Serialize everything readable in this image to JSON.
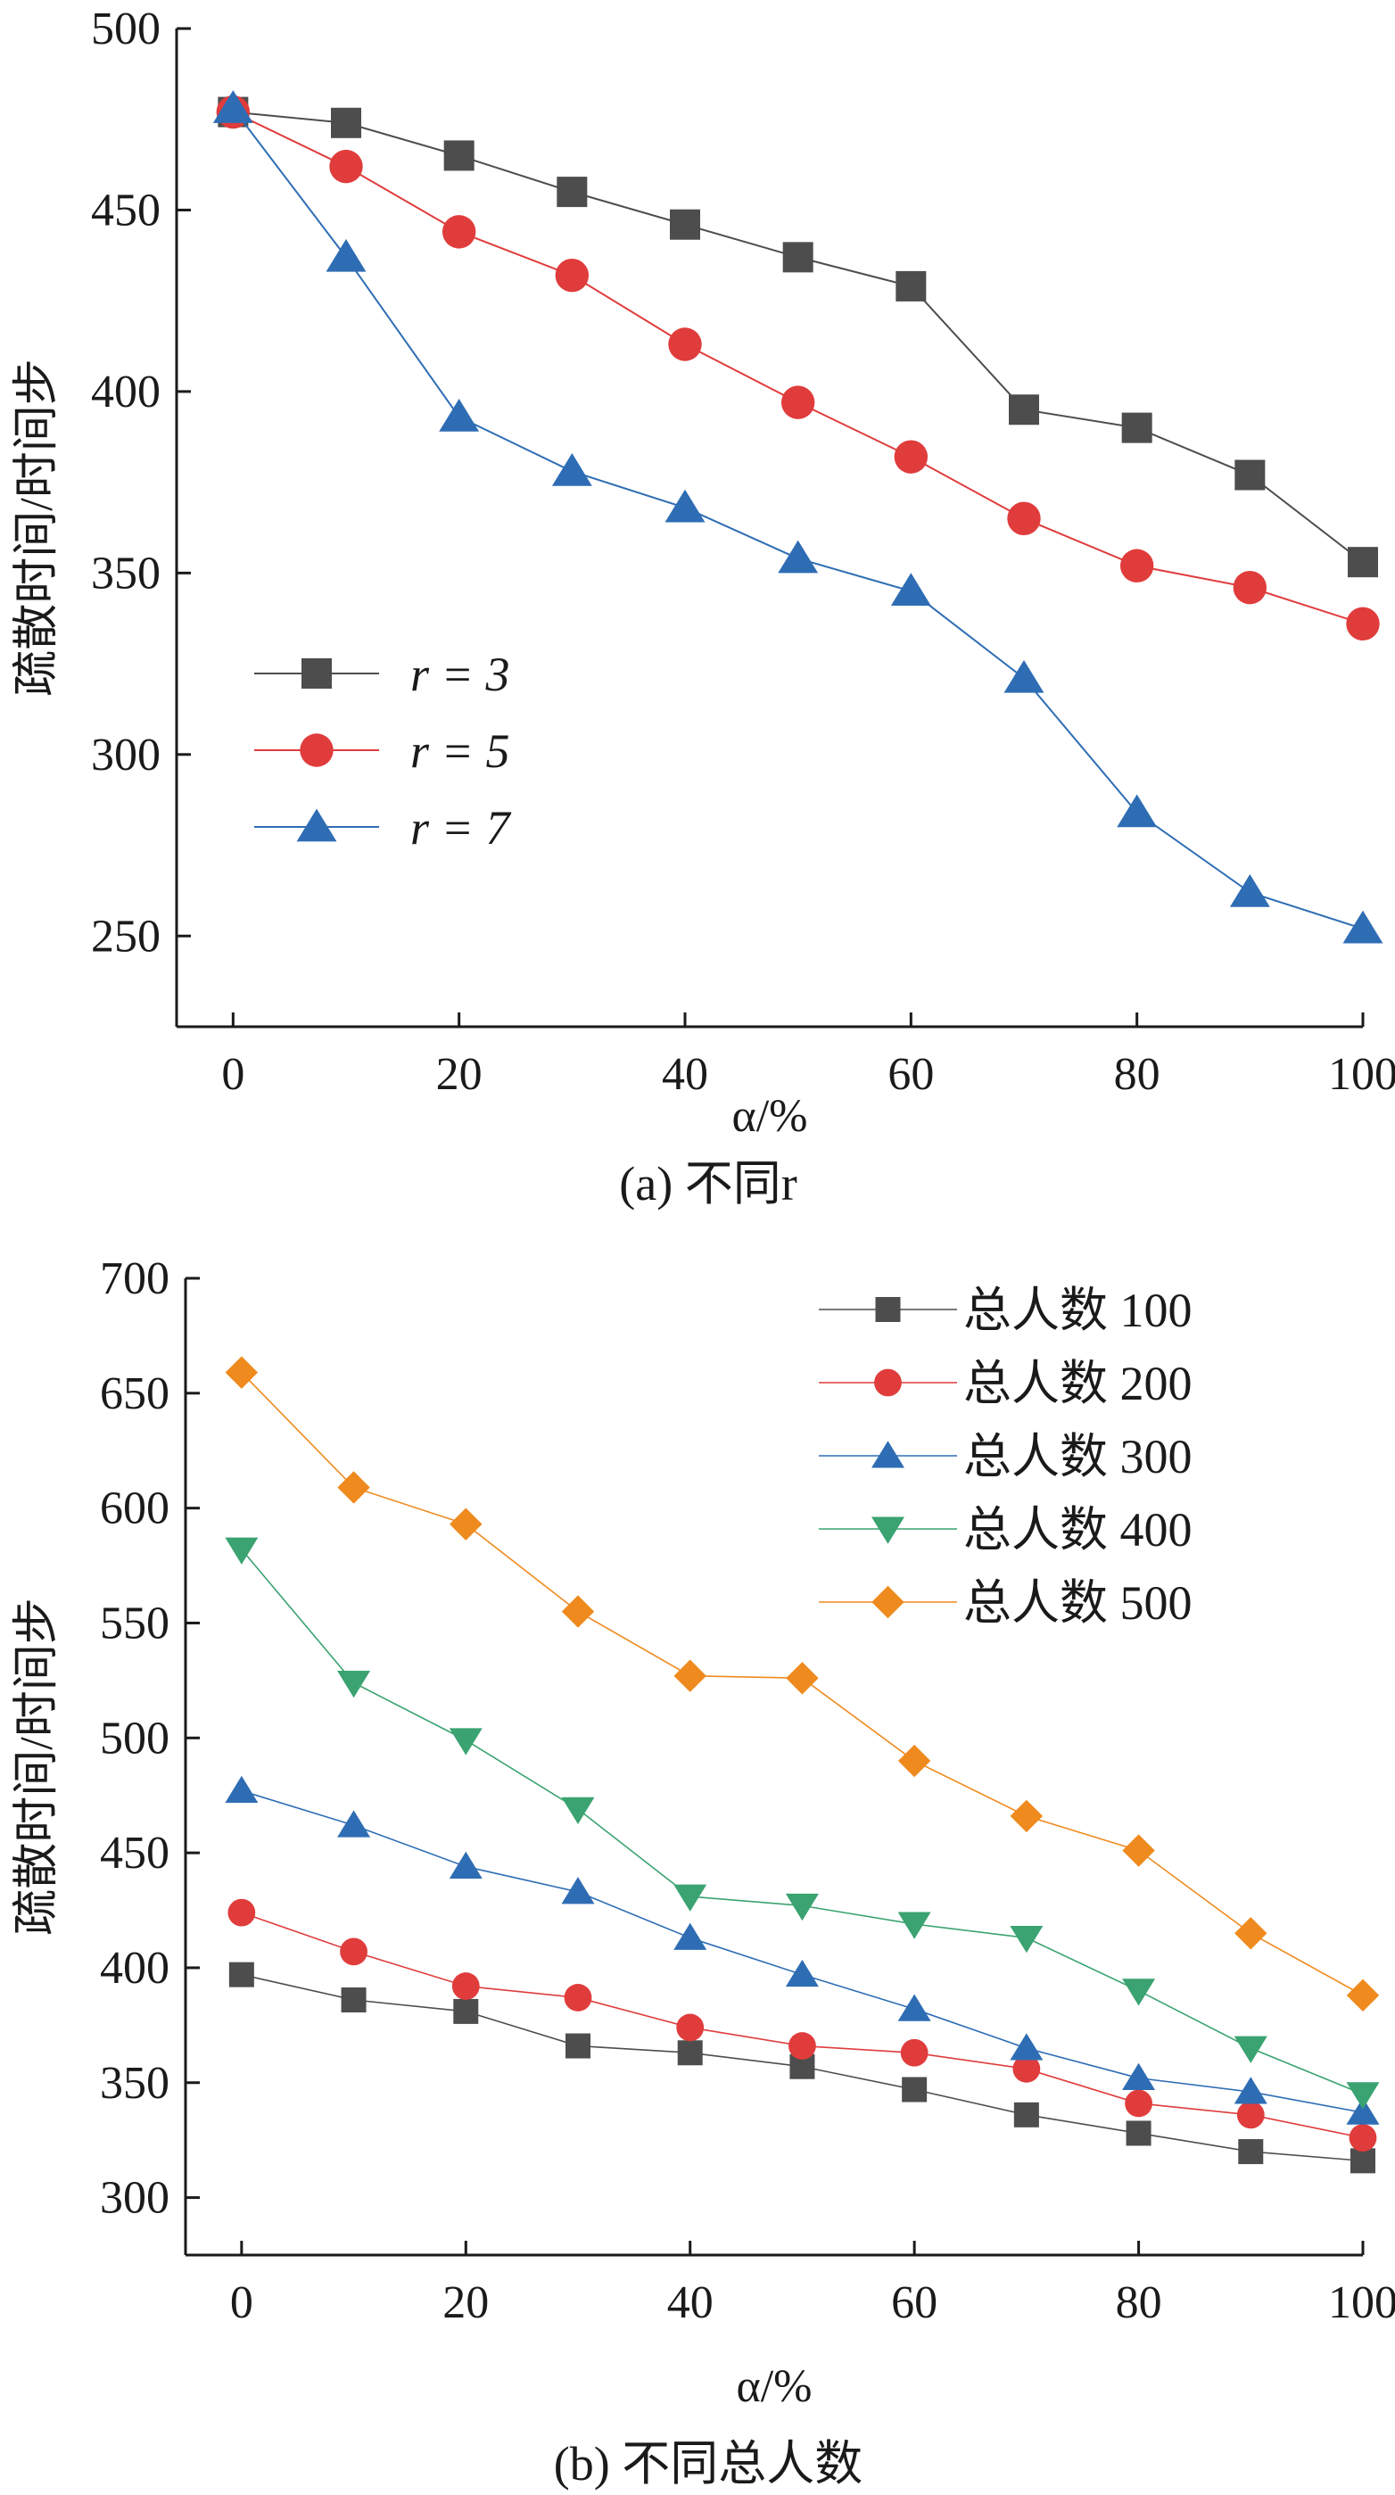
{
  "chart_data": [
    {
      "type": "line",
      "caption": "(a) 不同r",
      "xlabel": "α/%",
      "ylabel": "疏散时间/时间步",
      "xlim": [
        -5,
        100
      ],
      "ylim": [
        225,
        500
      ],
      "xticks": [
        0,
        20,
        40,
        60,
        80,
        100
      ],
      "yticks": [
        250,
        300,
        350,
        400,
        450,
        500
      ],
      "legend_position": "center-left",
      "x": [
        0,
        10,
        20,
        30,
        40,
        50,
        60,
        70,
        80,
        90,
        100
      ],
      "series": [
        {
          "name": "r = 3",
          "color": "#4d4d4d",
          "marker": "square",
          "values": [
            477,
            474,
            465,
            455,
            446,
            437,
            429,
            395,
            390,
            377,
            353
          ]
        },
        {
          "name": "r = 5",
          "color": "#e03c3c",
          "marker": "circle",
          "values": [
            477,
            462,
            444,
            432,
            413,
            397,
            382,
            365,
            352,
            346,
            336
          ]
        },
        {
          "name": "r = 7",
          "color": "#2e6db4",
          "marker": "triangle-up",
          "values": [
            478,
            437,
            393,
            378,
            368,
            354,
            345,
            321,
            284,
            262,
            252
          ]
        }
      ]
    },
    {
      "type": "line",
      "caption": "(b) 不同总人数",
      "xlabel": "α/%",
      "ylabel": "疏散时间/时间步",
      "xlim": [
        -5,
        100
      ],
      "ylim": [
        275,
        700
      ],
      "xticks": [
        0,
        20,
        40,
        60,
        80,
        100
      ],
      "yticks": [
        300,
        350,
        400,
        450,
        500,
        550,
        600,
        650,
        700
      ],
      "legend_position": "top-right",
      "x": [
        0,
        10,
        20,
        30,
        40,
        50,
        60,
        70,
        80,
        90,
        100
      ],
      "series": [
        {
          "name": "总人数 100",
          "color": "#4d4d4d",
          "marker": "square",
          "values": [
            397,
            386,
            381,
            366,
            363,
            357,
            347,
            336,
            328,
            320,
            316
          ]
        },
        {
          "name": "总人数 200",
          "color": "#e03c3c",
          "marker": "circle",
          "values": [
            424,
            407,
            392,
            387,
            374,
            366,
            363,
            356,
            341,
            336,
            326
          ]
        },
        {
          "name": "总人数 300",
          "color": "#2e6db4",
          "marker": "triangle-up",
          "values": [
            477,
            462,
            444,
            433,
            413,
            397,
            382,
            365,
            352,
            346,
            337
          ]
        },
        {
          "name": "总人数 400",
          "color": "#3aa371",
          "marker": "triangle-down",
          "values": [
            582,
            524,
            499,
            469,
            431,
            427,
            419,
            413,
            390,
            365,
            345
          ]
        },
        {
          "name": "总人数 500",
          "color": "#ef8a1e",
          "marker": "diamond",
          "values": [
            659,
            609,
            593,
            555,
            527,
            526,
            490,
            466,
            451,
            415,
            388
          ]
        }
      ]
    }
  ]
}
